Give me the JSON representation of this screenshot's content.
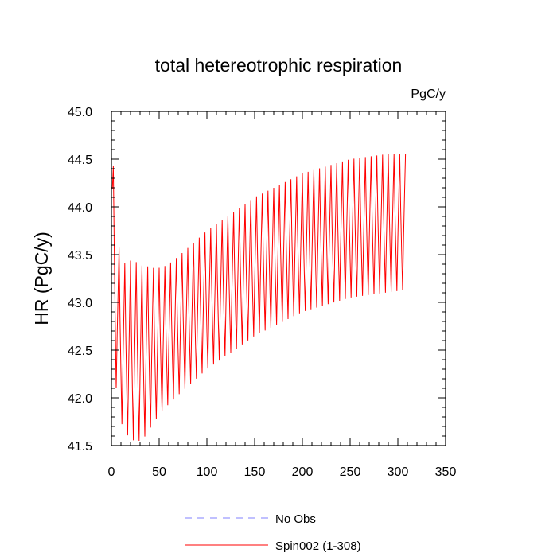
{
  "chart_data": {
    "type": "line",
    "title": "total hetereotrophic respiration",
    "units_label": "PgC/y",
    "ylabel": "HR  (PgC/y)",
    "xlabel": "",
    "xlim": [
      0,
      350
    ],
    "ylim": [
      41.5,
      45.0
    ],
    "x_ticks": [
      0,
      50,
      100,
      150,
      200,
      250,
      300,
      350
    ],
    "x_tick_labels": [
      "0",
      "50",
      "100",
      "150",
      "200",
      "250",
      "300",
      "350"
    ],
    "y_ticks": [
      41.5,
      42.0,
      42.5,
      43.0,
      43.5,
      44.0,
      44.5,
      45.0
    ],
    "y_tick_labels": [
      "41.5",
      "42.0",
      "42.5",
      "43.0",
      "43.5",
      "44.0",
      "44.5",
      "45.0"
    ],
    "series": [
      {
        "name": "No Obs",
        "color": "#8080ff",
        "style": "dashed",
        "values": []
      },
      {
        "name": "Spin002 (1-308)",
        "color": "#ff0000",
        "style": "solid",
        "x_range": [
          1,
          308
        ],
        "period": 6,
        "seasonal_offsets": [
          0.55,
          1.0,
          0.4,
          -0.05,
          -0.45,
          0.1
        ],
        "baseline_points": [
          [
            1,
            43.6
          ],
          [
            5,
            42.6
          ],
          [
            12,
            42.2
          ],
          [
            30,
            42.1
          ],
          [
            50,
            42.3
          ],
          [
            100,
            42.75
          ],
          [
            150,
            43.1
          ],
          [
            200,
            43.35
          ],
          [
            250,
            43.5
          ],
          [
            308,
            43.58
          ]
        ],
        "extremes": {
          "min": 41.55,
          "max": 44.55
        }
      }
    ],
    "legend": {
      "position": "bottom",
      "entries": [
        "No Obs",
        "Spin002 (1-308)"
      ]
    }
  }
}
